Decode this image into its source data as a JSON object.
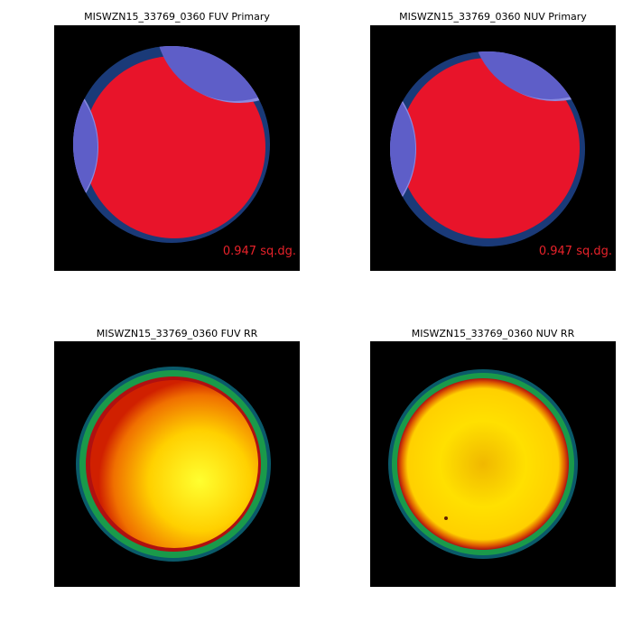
{
  "panels": [
    {
      "title": "MISWZN15_33769_0360 FUV Primary",
      "annotation": "0.947 sq.dg."
    },
    {
      "title": "MISWZN15_33769_0360 NUV Primary",
      "annotation": "0.947 sq.dg."
    },
    {
      "title": "MISWZN15_33769_0360 FUV RR"
    },
    {
      "title": "MISWZN15_33769_0360 NUV RR"
    }
  ]
}
